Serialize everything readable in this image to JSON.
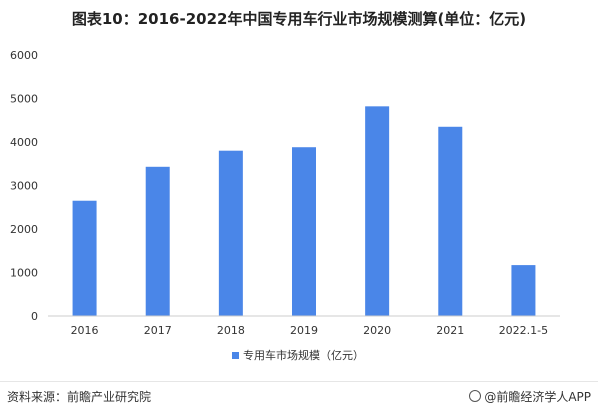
{
  "title": "图表10：2016-2022年中国专用车行业市场规模测算(单位：亿元)",
  "footer": {
    "source": "资料来源：前瞻产业研究院",
    "brand": "@前瞻经济学人APP"
  },
  "colors": {
    "bar": "#4a86e8",
    "axis": "#cccccc",
    "grid": "#f0f0f0",
    "text": "#333333"
  },
  "chart_data": {
    "type": "bar",
    "categories": [
      "2016",
      "2017",
      "2018",
      "2019",
      "2020",
      "2021",
      "2022.1-5"
    ],
    "series": [
      {
        "name": "专用车市场规模（亿元）",
        "values": [
          2650,
          3430,
          3800,
          3880,
          4820,
          4350,
          1170
        ]
      }
    ],
    "ylim": [
      0,
      6000
    ],
    "yticks": [
      0,
      1000,
      2000,
      3000,
      4000,
      5000,
      6000
    ],
    "grid": false,
    "legend": "bottom-center"
  }
}
